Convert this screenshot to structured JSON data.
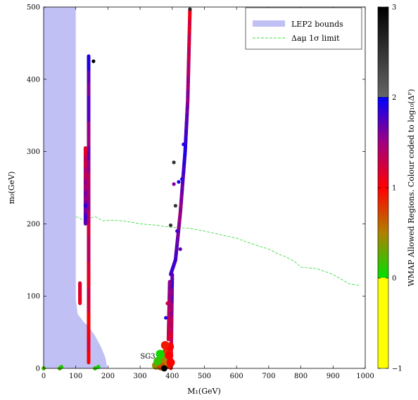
{
  "chart_data": {
    "type": "scatter",
    "xlabel": "M₁(GeV)",
    "ylabel": "m₀(GeV)",
    "xlim": [
      0,
      1000
    ],
    "ylim": [
      0,
      500
    ],
    "x_ticks": [
      0,
      100,
      200,
      300,
      400,
      500,
      600,
      700,
      800,
      900,
      1000
    ],
    "y_ticks": [
      0,
      100,
      200,
      300,
      400,
      500
    ],
    "legend": {
      "placement": "top-right",
      "entries": [
        {
          "label": "LEP2 bounds",
          "style": "filled",
          "color": "#c0c0f5"
        },
        {
          "label": "Δaμ 1σ limit",
          "style": "dashed",
          "color": "#44dd44"
        }
      ]
    },
    "colorbar": {
      "label": "WMAP Allowed Regions. Colour coded to log₁₀(Δᴾ)",
      "ticks": [
        -1,
        0,
        1,
        2,
        3
      ],
      "tick_labels": [
        "−1",
        "0",
        "1",
        "2",
        "3"
      ],
      "range": [
        -1,
        3
      ]
    },
    "lep2_region": {
      "boundary": [
        [
          0,
          0
        ],
        [
          0,
          500
        ],
        [
          100,
          500
        ],
        [
          100,
          95
        ],
        [
          106,
          75
        ],
        [
          125,
          64
        ],
        [
          140,
          58
        ],
        [
          160,
          45
        ],
        [
          178,
          30
        ],
        [
          192,
          15
        ],
        [
          198,
          0
        ]
      ]
    },
    "amu_limit": {
      "points": [
        [
          100,
          210
        ],
        [
          130,
          204
        ],
        [
          145,
          208
        ],
        [
          160,
          210
        ],
        [
          185,
          204
        ],
        [
          210,
          205
        ],
        [
          250,
          204
        ],
        [
          300,
          200
        ],
        [
          350,
          198
        ],
        [
          400,
          195
        ],
        [
          450,
          194
        ],
        [
          500,
          190
        ],
        [
          550,
          185
        ],
        [
          600,
          180
        ],
        [
          650,
          172
        ],
        [
          700,
          165
        ],
        [
          730,
          158
        ],
        [
          750,
          155
        ],
        [
          780,
          148
        ],
        [
          800,
          140
        ],
        [
          850,
          138
        ],
        [
          900,
          130
        ],
        [
          950,
          117
        ],
        [
          980,
          115
        ]
      ]
    },
    "strips": [
      {
        "x0": 140,
        "y0": 8,
        "x1": 140,
        "y1": 432,
        "c0": 1.0,
        "c1": 1.8
      },
      {
        "x0": 130,
        "y0": 200,
        "x1": 130,
        "y1": 305,
        "c0": 1.8,
        "c1": 1.2
      },
      {
        "x0": 113,
        "y0": 90,
        "x1": 113,
        "y1": 118,
        "c0": 1.1,
        "c1": 1.2
      },
      {
        "x0": 396,
        "y0": 0,
        "x1": 400,
        "y1": 130,
        "c0": 1.0,
        "c1": 1.8
      },
      {
        "x0": 395,
        "y0": 130,
        "x1": 410,
        "y1": 150,
        "c0": 1.8,
        "c1": 1.8
      },
      {
        "x0": 410,
        "y0": 150,
        "x1": 425,
        "y1": 215,
        "c0": 1.8,
        "c1": 1.5
      },
      {
        "x0": 425,
        "y0": 215,
        "x1": 440,
        "y1": 300,
        "c0": 1.5,
        "c1": 1.9
      },
      {
        "x0": 440,
        "y0": 300,
        "x1": 448,
        "y1": 370,
        "c0": 1.9,
        "c1": 1.6
      },
      {
        "x0": 448,
        "y0": 370,
        "x1": 455,
        "y1": 497,
        "c0": 1.6,
        "c1": 1.1
      },
      {
        "x0": 388,
        "y0": 40,
        "x1": 392,
        "y1": 120,
        "c0": 1.2,
        "c1": 1.6
      }
    ],
    "scatter_points": [
      {
        "x": 155,
        "y": 425,
        "c": 3.0
      },
      {
        "x": 455,
        "y": 497,
        "c": 2.6
      },
      {
        "x": 405,
        "y": 285,
        "c": 2.5
      },
      {
        "x": 410,
        "y": 225,
        "c": 2.5
      },
      {
        "x": 395,
        "y": 198,
        "c": 2.5
      },
      {
        "x": 420,
        "y": 258,
        "c": 1.9
      },
      {
        "x": 430,
        "y": 262,
        "c": 1.9
      },
      {
        "x": 405,
        "y": 255,
        "c": 1.6
      },
      {
        "x": 435,
        "y": 310,
        "c": 1.9
      },
      {
        "x": 415,
        "y": 190,
        "c": 1.8
      },
      {
        "x": 425,
        "y": 165,
        "c": 1.7
      },
      {
        "x": 130,
        "y": 225,
        "c": 1.9
      },
      {
        "x": 385,
        "y": 90,
        "c": 1.3
      },
      {
        "x": 380,
        "y": 70,
        "c": 1.9
      }
    ],
    "low_cluster": {
      "points": [
        [
          350,
          4,
          0.4
        ],
        [
          360,
          8,
          0.2
        ],
        [
          368,
          14,
          0.1
        ],
        [
          375,
          20,
          0.3
        ],
        [
          380,
          10,
          0.6
        ],
        [
          385,
          25,
          0.8
        ],
        [
          388,
          5,
          0.9
        ],
        [
          392,
          30,
          1.0
        ],
        [
          372,
          6,
          0.5
        ],
        [
          365,
          3,
          0.7
        ],
        [
          378,
          32,
          0.9
        ],
        [
          383,
          16,
          0.4
        ],
        [
          390,
          18,
          1.0
        ],
        [
          355,
          10,
          0.15
        ],
        [
          362,
          20,
          0.05
        ],
        [
          395,
          8,
          1.0
        ]
      ]
    },
    "axis_points": [
      [
        0,
        0,
        0.2
      ],
      [
        50,
        0,
        0.2
      ],
      [
        55,
        2,
        0.1
      ],
      [
        160,
        0,
        0.15
      ],
      [
        170,
        2,
        0.05
      ]
    ],
    "annotation": {
      "label": "SG3",
      "x": 375,
      "y": 0
    }
  }
}
